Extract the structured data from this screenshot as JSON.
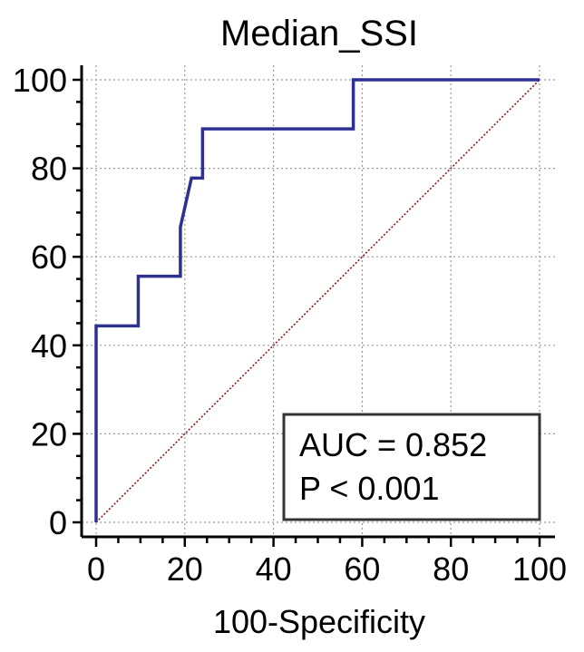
{
  "chart_data": {
    "type": "line",
    "title": "Median_SSI",
    "xlabel": "100-Specificity",
    "ylabel": "",
    "xlim": [
      0,
      100
    ],
    "ylim": [
      0,
      100
    ],
    "xticks": [
      0,
      20,
      40,
      60,
      80,
      100
    ],
    "yticks": [
      0,
      20,
      40,
      60,
      80,
      100
    ],
    "grid": true,
    "series": [
      {
        "color": "#2e3192",
        "style": "step",
        "points": [
          [
            0,
            0
          ],
          [
            0,
            44.4
          ],
          [
            9.5,
            44.4
          ],
          [
            9.5,
            55.6
          ],
          [
            19.0,
            55.6
          ],
          [
            19.0,
            66.7
          ],
          [
            21.5,
            77.8
          ],
          [
            24.0,
            77.8
          ],
          [
            24.0,
            88.9
          ],
          [
            58.0,
            88.9
          ],
          [
            58.0,
            100
          ],
          [
            100,
            100
          ]
        ]
      },
      {
        "color": "#8b1a1a",
        "style": "dotted",
        "points": [
          [
            0,
            0
          ],
          [
            100,
            100
          ]
        ]
      }
    ],
    "annotation": {
      "lines": [
        "AUC = 0.852",
        "P < 0.001"
      ],
      "placement": "bottom-right"
    }
  }
}
